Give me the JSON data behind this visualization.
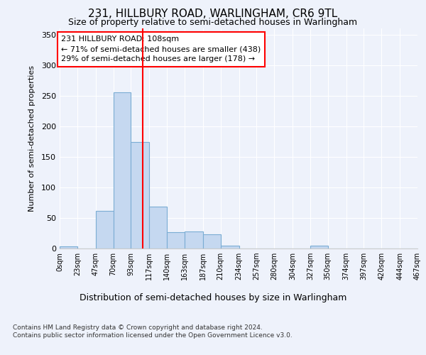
{
  "title1": "231, HILLBURY ROAD, WARLINGHAM, CR6 9TL",
  "title2": "Size of property relative to semi-detached houses in Warlingham",
  "xlabel": "Distribution of semi-detached houses by size in Warlingham",
  "ylabel": "Number of semi-detached properties",
  "bin_edges": [
    0,
    23,
    47,
    70,
    93,
    117,
    140,
    163,
    187,
    210,
    234,
    257,
    280,
    304,
    327,
    350,
    374,
    397,
    420,
    444,
    467
  ],
  "bin_labels": [
    "0sqm",
    "23sqm",
    "47sqm",
    "70sqm",
    "93sqm",
    "117sqm",
    "140sqm",
    "163sqm",
    "187sqm",
    "210sqm",
    "234sqm",
    "257sqm",
    "280sqm",
    "304sqm",
    "327sqm",
    "350sqm",
    "374sqm",
    "397sqm",
    "420sqm",
    "444sqm",
    "467sqm"
  ],
  "counts": [
    4,
    0,
    61,
    255,
    174,
    68,
    27,
    28,
    23,
    5,
    0,
    0,
    0,
    0,
    5,
    0,
    0,
    0,
    0,
    0
  ],
  "bar_color": "#c5d8f0",
  "bar_edge_color": "#7badd4",
  "vline_x": 108,
  "vline_color": "red",
  "annotation_text": "231 HILLBURY ROAD: 108sqm\n← 71% of semi-detached houses are smaller (438)\n29% of semi-detached houses are larger (178) →",
  "annotation_box_color": "white",
  "annotation_box_edge": "red",
  "ylim": [
    0,
    360
  ],
  "yticks": [
    0,
    50,
    100,
    150,
    200,
    250,
    300,
    350
  ],
  "footer_text": "Contains HM Land Registry data © Crown copyright and database right 2024.\nContains public sector information licensed under the Open Government Licence v3.0.",
  "bg_color": "#eef2fb",
  "plot_bg_color": "#eef2fb",
  "grid_color": "white"
}
